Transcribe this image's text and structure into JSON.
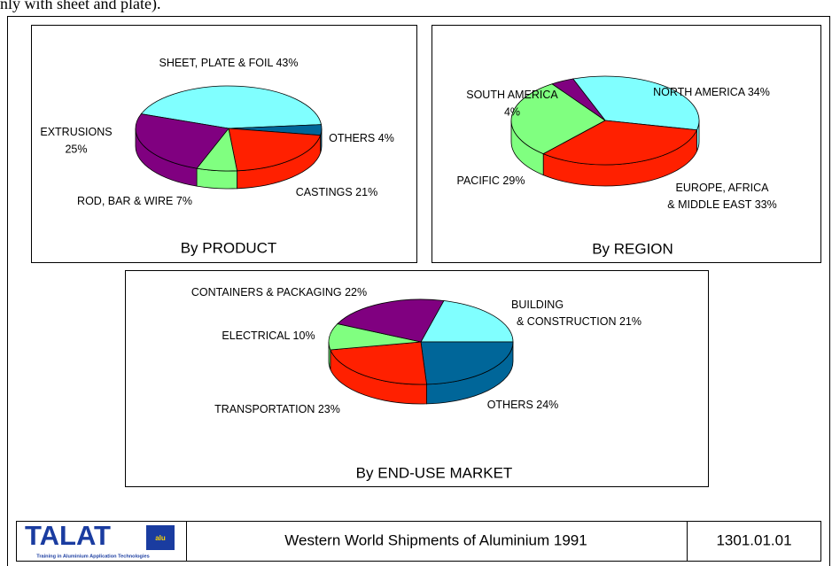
{
  "header_fragment": "nly with sheet and plate).",
  "chart_data": [
    {
      "type": "pie",
      "title": "By PRODUCT",
      "categories": [
        [
          "SHEET, PLATE & FOIL"
        ],
        [
          "OTHERS"
        ],
        [
          "CASTINGS"
        ],
        [
          "ROD, BAR & WIRE"
        ],
        [
          "EXTRUSIONS"
        ]
      ],
      "values": [
        43,
        4,
        21,
        7,
        25
      ],
      "value_labels": [
        "43%",
        "4%",
        "21%",
        "7%",
        "25%"
      ],
      "colors": [
        "#80ffff",
        "#006699",
        "#ff2000",
        "#80ff80",
        "#800080"
      ]
    },
    {
      "type": "pie",
      "title": "By REGION",
      "categories": [
        [
          "NORTH AMERICA"
        ],
        [
          "EUROPE, AFRICA",
          "& MIDDLE EAST"
        ],
        [
          "PACIFIC"
        ],
        [
          "SOUTH AMERICA"
        ]
      ],
      "values": [
        34,
        33,
        29,
        4
      ],
      "value_labels": [
        "34%",
        "33%",
        "29%",
        "4%"
      ],
      "colors": [
        "#80ffff",
        "#ff2000",
        "#80ff80",
        "#800080"
      ]
    },
    {
      "type": "pie",
      "title": "By END-USE MARKET",
      "categories": [
        [
          "BUILDING",
          "& CONSTRUCTION"
        ],
        [
          "OTHERS"
        ],
        [
          "TRANSPORTATION"
        ],
        [
          "ELECTRICAL"
        ],
        [
          "CONTAINERS & PACKAGING"
        ]
      ],
      "values": [
        21,
        24,
        23,
        10,
        22
      ],
      "value_labels": [
        "21%",
        "24%",
        "23%",
        "10%",
        "22%"
      ],
      "colors": [
        "#80ffff",
        "#006699",
        "#ff2000",
        "#80ff80",
        "#800080"
      ]
    }
  ],
  "footer": {
    "logo": "TALAT",
    "logo_flag": "alu",
    "logo_tagline": "Training in Aluminium Application Technologies",
    "title": "Western World Shipments of Aluminium 1991",
    "code": "1301.01.01"
  }
}
